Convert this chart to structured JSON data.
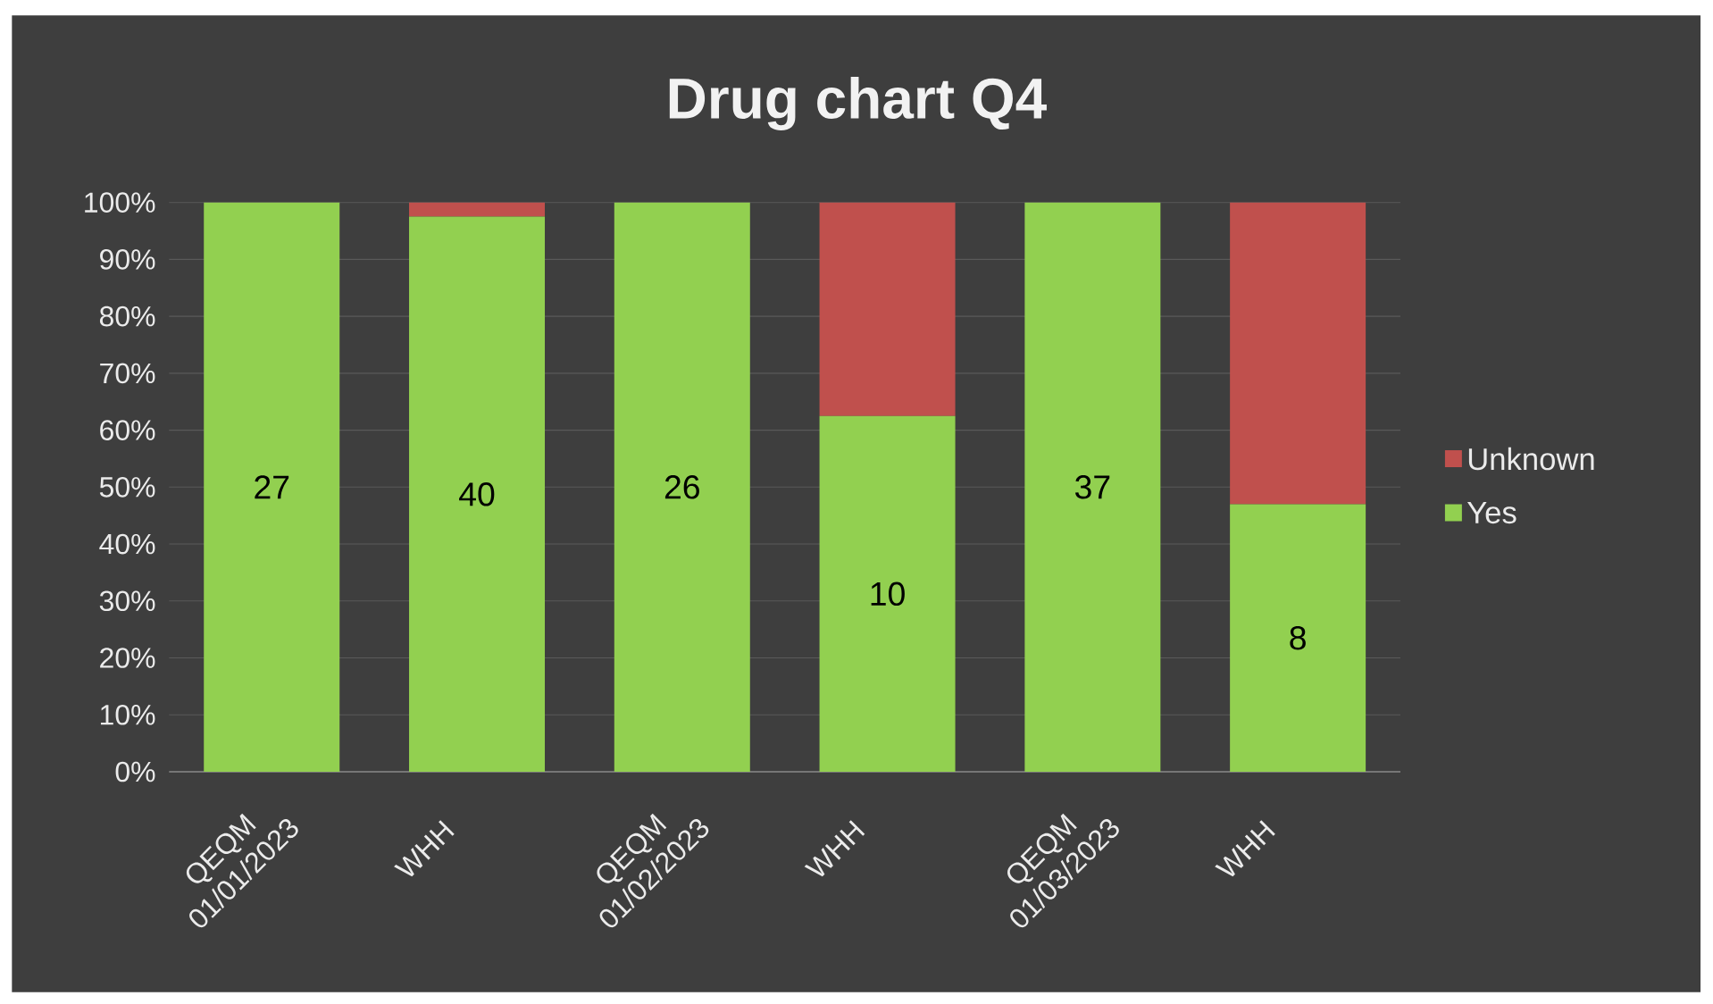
{
  "chart_data": {
    "type": "bar",
    "title": "Drug chart Q4",
    "stacked": true,
    "categories": [
      "QEQM 01/01/2023",
      "WHH",
      "QEQM 01/02/2023",
      "WHH",
      "QEQM 01/03/2023",
      "WHH"
    ],
    "series": [
      {
        "name": "Yes",
        "color": "#92d050",
        "values": [
          100,
          97.5,
          100,
          62.5,
          100,
          47
        ]
      },
      {
        "name": "Unknown",
        "color": "#c0504d",
        "values": [
          0,
          2.5,
          0,
          37.5,
          0,
          53
        ]
      }
    ],
    "ylim": [
      0,
      100
    ],
    "yticks": [
      {
        "value": 0,
        "label": "0%"
      },
      {
        "value": 10,
        "label": "10%"
      },
      {
        "value": 20,
        "label": "20%"
      },
      {
        "value": 30,
        "label": "30%"
      },
      {
        "value": 40,
        "label": "40%"
      },
      {
        "value": 50,
        "label": "50%"
      },
      {
        "value": 60,
        "label": "60%"
      },
      {
        "value": 70,
        "label": "70%"
      },
      {
        "value": 80,
        "label": "80%"
      },
      {
        "value": 90,
        "label": "90%"
      },
      {
        "value": 100,
        "label": "100%"
      }
    ],
    "annotations": [
      "27",
      "40",
      "26",
      "10",
      "37",
      "8"
    ],
    "grid": "y",
    "legend": "right"
  }
}
